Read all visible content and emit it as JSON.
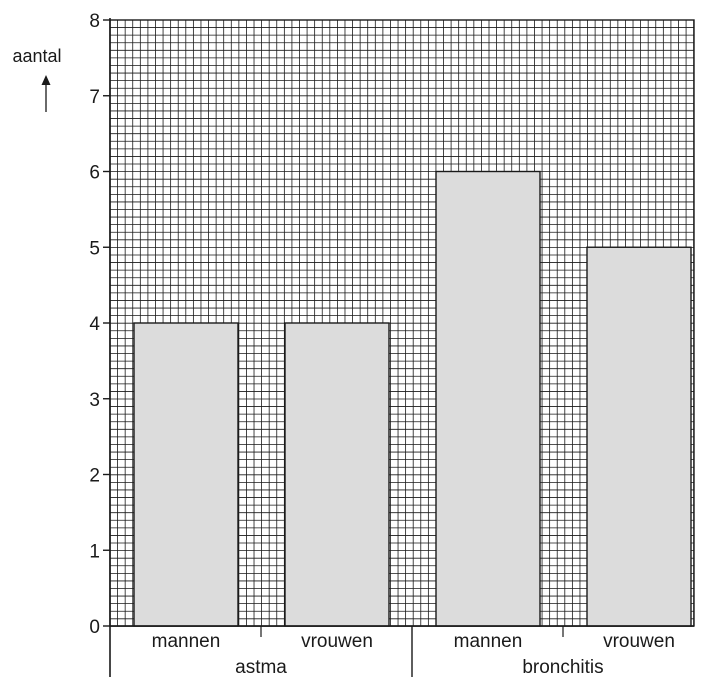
{
  "chart_data": {
    "type": "bar",
    "ylabel": "aantal",
    "ylabel_arrow": "↑",
    "ylim": [
      0,
      8
    ],
    "yticks": [
      "0",
      "1",
      "2",
      "3",
      "4",
      "5",
      "6",
      "7",
      "8"
    ],
    "grid": true,
    "categories": [
      "mannen",
      "vrouwen",
      "mannen",
      "vrouwen"
    ],
    "groups": [
      {
        "name": "astma",
        "categories": [
          "mannen",
          "vrouwen"
        ]
      },
      {
        "name": "bronchitis",
        "categories": [
          "mannen",
          "vrouwen"
        ]
      }
    ],
    "values": [
      4,
      4,
      6,
      5
    ],
    "colors": {
      "bar_fill": "#dcdcdc",
      "bar_stroke": "#1a1a1a",
      "grid": "#1a1a1a"
    }
  }
}
